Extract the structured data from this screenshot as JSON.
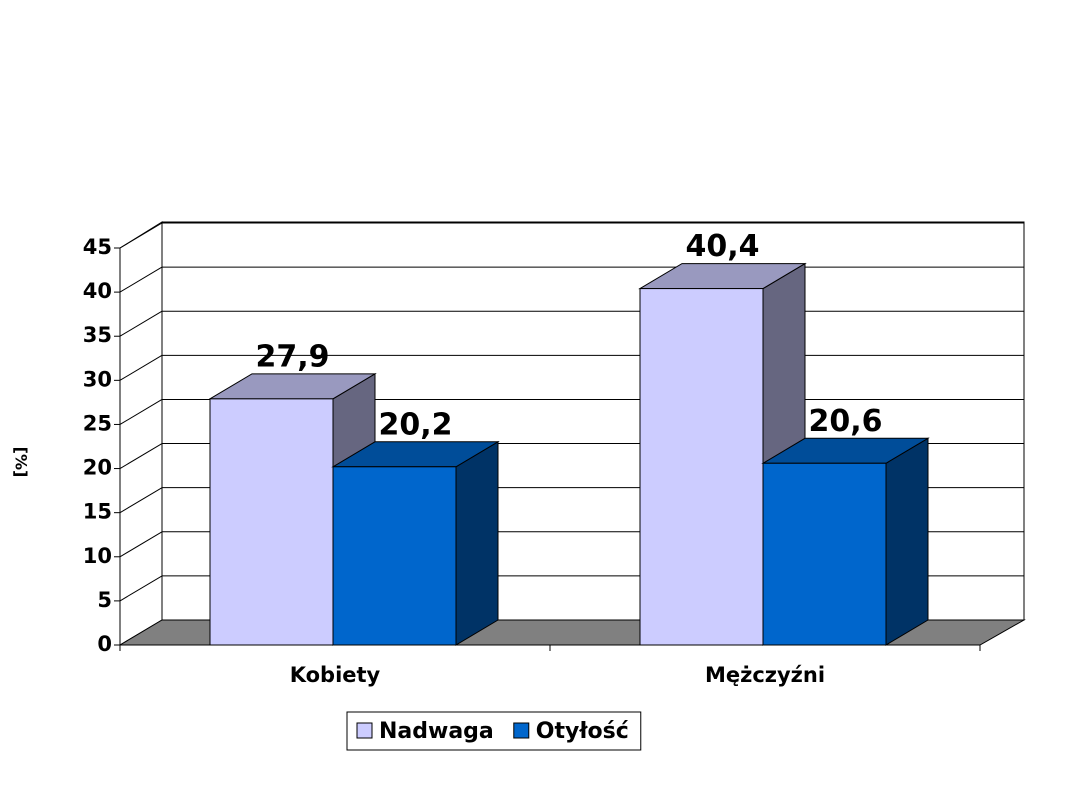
{
  "chart_data": {
    "type": "bar3d",
    "y_label": "[%]",
    "categories": [
      "Kobiety",
      "Mężczyźni"
    ],
    "series": [
      {
        "name": "Nadwaga",
        "color": "#ccccff",
        "values": [
          27.9,
          40.4
        ],
        "value_labels": [
          "27,9",
          "40,4"
        ]
      },
      {
        "name": "Otyłość",
        "color": "#0066cc",
        "values": [
          20.2,
          20.6
        ],
        "value_labels": [
          "20,2",
          "20,6"
        ]
      }
    ],
    "ylim": [
      0,
      45
    ],
    "yticks": [
      0,
      5,
      10,
      15,
      20,
      25,
      30,
      35,
      40,
      45
    ],
    "grid": true,
    "legend": "bottom"
  }
}
